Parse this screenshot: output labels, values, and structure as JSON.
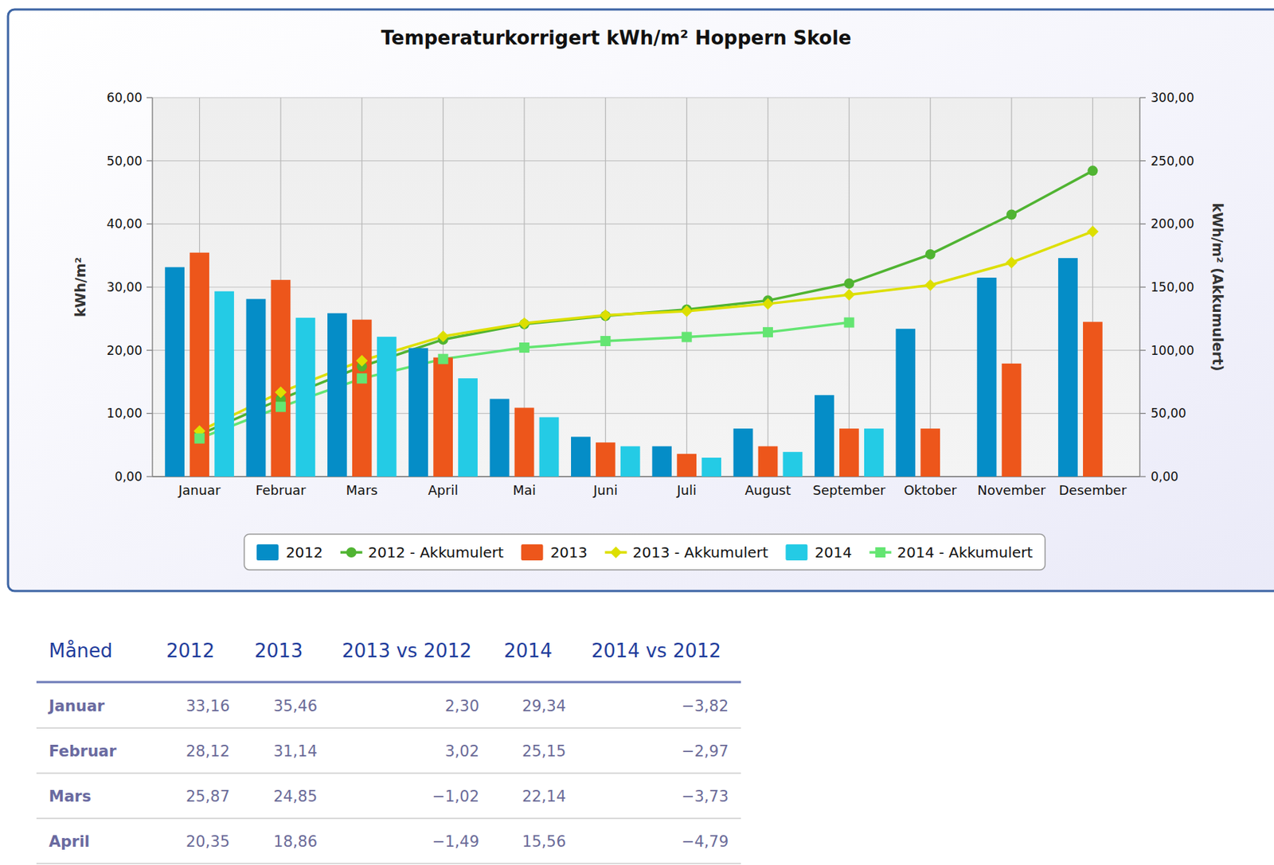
{
  "chart_data": {
    "type": "bar",
    "title": "Temperaturkorrigert kWh/m² Hoppern Skole",
    "ylabel": "kWh/m²",
    "y2label": "kWh/m² (Akkumulert)",
    "categories": [
      "Januar",
      "Februar",
      "Mars",
      "April",
      "Mai",
      "Juni",
      "Juli",
      "August",
      "September",
      "Oktober",
      "November",
      "Desember"
    ],
    "series": [
      {
        "name": "2012",
        "type": "bar",
        "color": "#058DC7",
        "values": [
          33.16,
          28.12,
          25.87,
          20.35,
          12.3,
          6.3,
          4.8,
          7.6,
          12.9,
          23.4,
          31.5,
          34.6
        ]
      },
      {
        "name": "2012 - Akkumulert",
        "type": "line",
        "color": "#50B432",
        "marker": "circle",
        "axis": "y2",
        "values": [
          33.2,
          61.3,
          87.2,
          108.5,
          120.7,
          127.2,
          132.3,
          139.4,
          152.9,
          176,
          207.4,
          242.1
        ]
      },
      {
        "name": "2013",
        "type": "bar",
        "color": "#ED561B",
        "values": [
          35.46,
          31.14,
          24.85,
          18.86,
          10.9,
          5.4,
          3.6,
          4.8,
          7.6,
          7.6,
          17.9,
          24.5
        ]
      },
      {
        "name": "2013 - Akkumulert",
        "type": "line",
        "color": "#DDDF00",
        "marker": "diamond",
        "axis": "y2",
        "values": [
          36,
          66.8,
          91.8,
          111,
          121.4,
          127.8,
          131,
          136.8,
          143.9,
          151.6,
          169.5,
          194
        ]
      },
      {
        "name": "2014",
        "type": "bar",
        "color": "#24CBE5",
        "values": [
          29.34,
          25.15,
          22.14,
          15.56,
          9.4,
          4.8,
          3.0,
          3.9,
          7.6,
          null,
          null,
          null
        ]
      },
      {
        "name": "2014 - Akkumulert",
        "type": "line",
        "color": "#64E572",
        "marker": "square",
        "axis": "y2",
        "values": [
          30.2,
          55.2,
          77.7,
          93.1,
          102.1,
          107.3,
          110.5,
          114.3,
          122,
          null,
          null,
          null
        ]
      }
    ],
    "ylim": [
      0,
      60
    ],
    "yticks": [
      {
        "value": 0,
        "label": "0,00"
      },
      {
        "value": 10,
        "label": "10,00"
      },
      {
        "value": 20,
        "label": "20,00"
      },
      {
        "value": 30,
        "label": "30,00"
      },
      {
        "value": 40,
        "label": "40,00"
      },
      {
        "value": 50,
        "label": "50,00"
      },
      {
        "value": 60,
        "label": "60,00"
      }
    ],
    "y2lim": [
      0,
      300
    ],
    "y2ticks": [
      {
        "value": 0,
        "label": "0,00"
      },
      {
        "value": 50,
        "label": "50,00"
      },
      {
        "value": 100,
        "label": "100,00"
      },
      {
        "value": 150,
        "label": "150,00"
      },
      {
        "value": 200,
        "label": "200,00"
      },
      {
        "value": 250,
        "label": "250,00"
      },
      {
        "value": 300,
        "label": "300,00"
      }
    ],
    "grid": true,
    "legend": "bottom"
  },
  "table": {
    "columns": [
      "Måned",
      "2012",
      "2013",
      "2013 vs 2012",
      "2014",
      "2014 vs 2012"
    ],
    "rows": [
      [
        "Januar",
        "33,16",
        "35,46",
        "2,30",
        "29,34",
        "−3,82"
      ],
      [
        "Februar",
        "28,12",
        "31,14",
        "3,02",
        "25,15",
        "−2,97"
      ],
      [
        "Mars",
        "25,87",
        "24,85",
        "−1,02",
        "22,14",
        "−3,73"
      ],
      [
        "April",
        "20,35",
        "18,86",
        "−1,49",
        "15,56",
        "−4,79"
      ]
    ]
  }
}
